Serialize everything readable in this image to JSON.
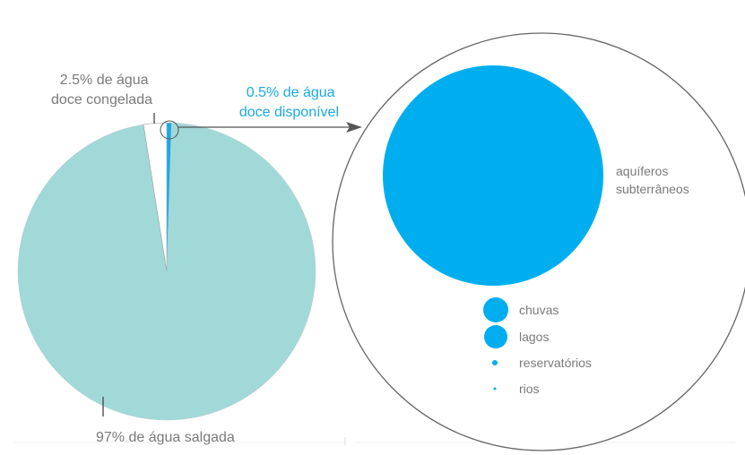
{
  "chart_data": [
    {
      "type": "pie",
      "slices": [
        {
          "label_lines": [
            "97% de água salgada"
          ],
          "value": 97,
          "color": "#a1d8d8"
        },
        {
          "label_lines": [
            "2.5% de água",
            "doce congelada"
          ],
          "value": 2.5,
          "color": "#ffffff"
        },
        {
          "label_lines": [
            "0.5% de água",
            "doce disponível"
          ],
          "value": 0.5,
          "color": "#1aa9e6"
        }
      ]
    },
    {
      "type": "bubble",
      "items": [
        {
          "label_lines": [
            "aquíferos",
            "subterrâneos"
          ],
          "relative_size": 1.0
        },
        {
          "label_lines": [
            "chuvas"
          ],
          "relative_size": 0.11
        },
        {
          "label_lines": [
            "lagos"
          ],
          "relative_size": 0.1
        },
        {
          "label_lines": [
            "reservatórios"
          ],
          "relative_size": 0.025
        },
        {
          "label_lines": [
            "rios"
          ],
          "relative_size": 0.012
        }
      ],
      "color": "#00aeef",
      "outline_color": "#666666"
    }
  ],
  "colors": {
    "label": "#7a7a7a",
    "label_highlight": "#1aa9e6",
    "line": "#555555"
  }
}
